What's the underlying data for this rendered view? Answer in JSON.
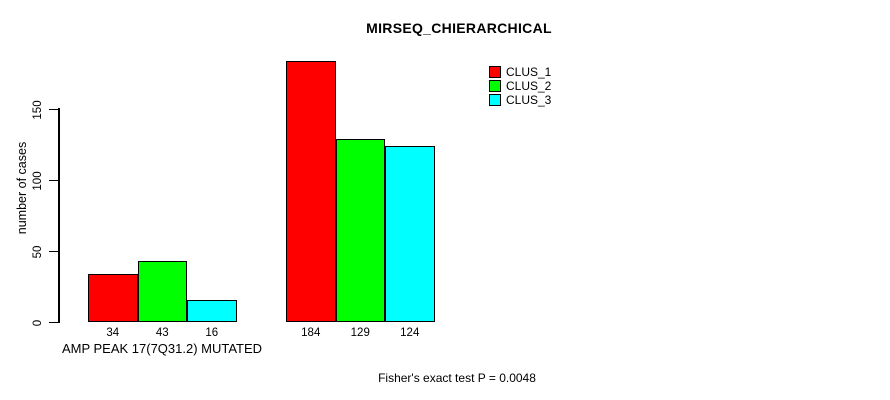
{
  "chart_data": {
    "type": "bar",
    "title": "MIRSEQ_CHIERARCHICAL",
    "ylabel": "number of cases",
    "footer": "Fisher's exact test P = 0.0048",
    "yticks": [
      0,
      50,
      100,
      150
    ],
    "ylim": [
      0,
      195
    ],
    "grid": false,
    "legend_position": "top-right",
    "bar_border_color": "#000000",
    "categories": [
      "AMP PEAK 17(7Q31.2) MUTATED",
      ""
    ],
    "groups": [
      {
        "label": "AMP PEAK 17(7Q31.2) MUTATED",
        "values": [
          34,
          43,
          16
        ]
      },
      {
        "label": "",
        "values": [
          184,
          129,
          124
        ]
      }
    ],
    "series": [
      {
        "name": "CLUS_1",
        "color": "#ff0000"
      },
      {
        "name": "CLUS_2",
        "color": "#00ff00"
      },
      {
        "name": "CLUS_3",
        "color": "#00ffff"
      }
    ]
  }
}
